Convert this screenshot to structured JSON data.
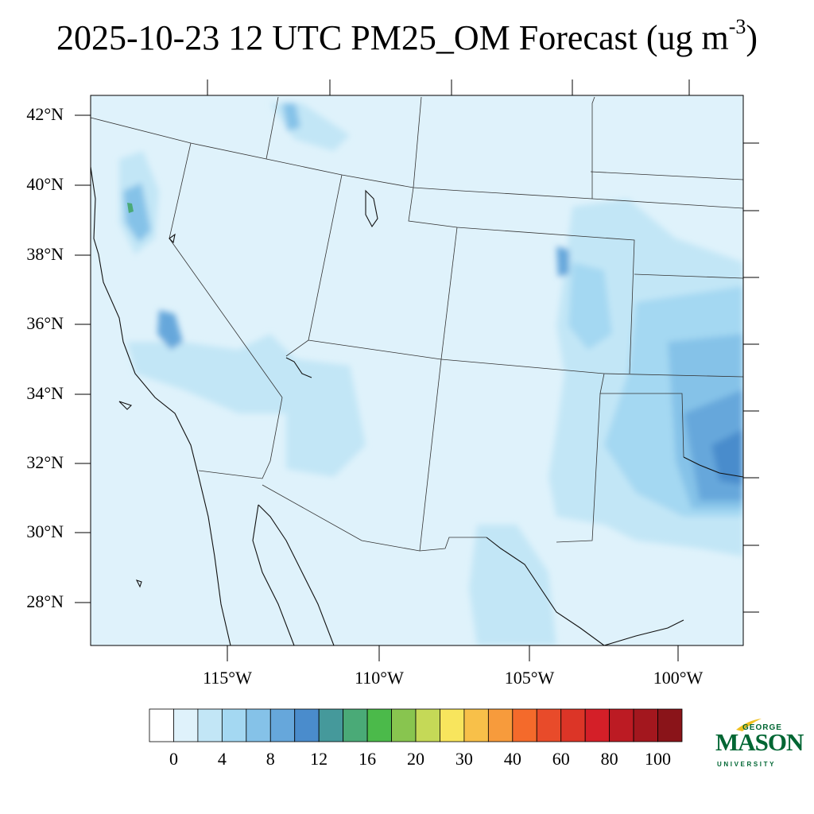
{
  "title": {
    "main": "2025-10-23 12 UTC PM25_OM Forecast (ug m",
    "superscript": "-3",
    "close": ")"
  },
  "lat_labels": [
    "42°N",
    "40°N",
    "38°N",
    "36°N",
    "34°N",
    "32°N",
    "30°N",
    "28°N"
  ],
  "lon_labels": [
    "115°W",
    "110°W",
    "105°W",
    "100°W"
  ],
  "colorbar": {
    "colors": [
      "#ffffff",
      "#dff2fb",
      "#c2e6f6",
      "#a4d8f2",
      "#85c2e8",
      "#66a7db",
      "#4a8ccc",
      "#45999b",
      "#4aaa77",
      "#4bba4a",
      "#88c54f",
      "#c5d957",
      "#f8e55d",
      "#f8c049",
      "#f79b3c",
      "#f46a2b",
      "#e84b2a",
      "#dc3527",
      "#d41f28",
      "#bc1b23",
      "#a3171e",
      "#8a1419"
    ],
    "labels": [
      "0",
      "4",
      "8",
      "12",
      "16",
      "20",
      "30",
      "40",
      "60",
      "80",
      "100"
    ]
  },
  "logo": {
    "george": "GEORGE",
    "mason": "MASON",
    "university": "UNIVERSITY"
  }
}
